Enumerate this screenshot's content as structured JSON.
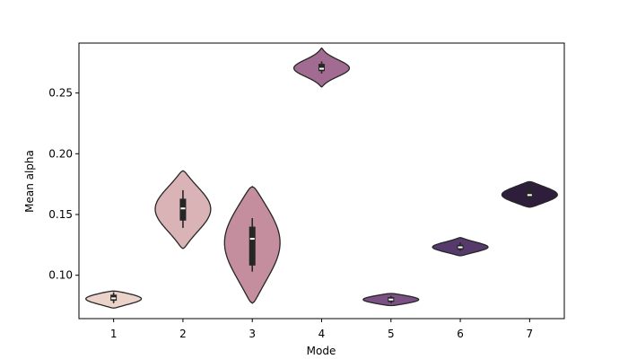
{
  "chart_data": {
    "type": "violin",
    "title": "",
    "xlabel": "Mode",
    "ylabel": "Mean alpha",
    "categories": [
      "1",
      "2",
      "3",
      "4",
      "5",
      "6",
      "7"
    ],
    "ylim": [
      0.0643,
      0.2911
    ],
    "yticks": [
      0.1,
      0.15,
      0.2,
      0.25
    ],
    "ytick_labels": [
      "0.10",
      "0.15",
      "0.20",
      "0.25"
    ],
    "grid": false,
    "violins": [
      {
        "mode": "1",
        "min": 0.073,
        "q1": 0.079,
        "median": 0.081,
        "q3": 0.084,
        "max": 0.087,
        "whisker_low": 0.077,
        "whisker_high": 0.086,
        "color": "#ecd3ca"
      },
      {
        "mode": "2",
        "min": 0.122,
        "q1": 0.145,
        "median": 0.155,
        "q3": 0.163,
        "max": 0.186,
        "whisker_low": 0.139,
        "whisker_high": 0.17,
        "color": "#dab3b6"
      },
      {
        "mode": "3",
        "min": 0.077,
        "q1": 0.108,
        "median": 0.13,
        "q3": 0.14,
        "max": 0.173,
        "whisker_low": 0.103,
        "whisker_high": 0.147,
        "color": "#c48e9f"
      },
      {
        "mode": "4",
        "min": 0.255,
        "q1": 0.268,
        "median": 0.27,
        "q3": 0.274,
        "max": 0.287,
        "whisker_low": 0.266,
        "whisker_high": 0.276,
        "color": "#a26c92"
      },
      {
        "mode": "5",
        "min": 0.075,
        "q1": 0.078,
        "median": 0.08,
        "q3": 0.082,
        "max": 0.085,
        "whisker_low": 0.077,
        "whisker_high": 0.083,
        "color": "#7b5082"
      },
      {
        "mode": "6",
        "min": 0.116,
        "q1": 0.121,
        "median": 0.123,
        "q3": 0.125,
        "max": 0.131,
        "whisker_low": 0.12,
        "whisker_high": 0.127,
        "color": "#553a6b"
      },
      {
        "mode": "7",
        "min": 0.156,
        "q1": 0.163,
        "median": 0.166,
        "q3": 0.17,
        "max": 0.177,
        "whisker_low": 0.161,
        "whisker_high": 0.175,
        "color": "#2e1e3b"
      }
    ]
  }
}
